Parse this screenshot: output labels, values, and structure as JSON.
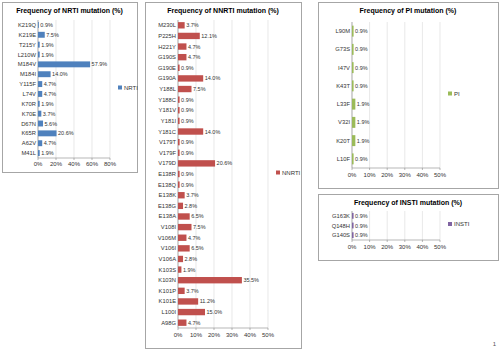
{
  "chart_data": [
    {
      "type": "bar",
      "orientation": "horizontal",
      "title": "Frequency of NRTI mutation (%)",
      "categories": [
        "K219Q",
        "K219E",
        "T215Y",
        "L210W",
        "M184V",
        "M184I",
        "Y115F",
        "L74V",
        "K70R",
        "K70E",
        "D67N",
        "K65R",
        "A62V",
        "M41L"
      ],
      "series": [
        {
          "name": "NRTI",
          "color": "#4f81bd",
          "values": [
            0.9,
            7.5,
            1.9,
            1.9,
            57.9,
            14.0,
            4.7,
            4.7,
            1.9,
            3.7,
            5.6,
            20.6,
            4.7,
            1.9
          ],
          "value_labels": [
            "0.9%",
            "7.5%",
            "1.9%",
            "1.9%",
            "57.9%",
            "14.0%",
            "4.7%",
            "4.7%",
            "1.9%",
            "3.7%",
            "5.6%",
            "20.6%",
            "4.7%",
            "1.9%"
          ]
        }
      ],
      "xlim": [
        0,
        80
      ],
      "xticks": [
        {
          "value": 0,
          "label": "0%"
        },
        {
          "value": 20,
          "label": "20%"
        },
        {
          "value": 40,
          "label": "40%"
        },
        {
          "value": 60,
          "label": "60%"
        },
        {
          "value": 80,
          "label": "80%"
        }
      ],
      "grid": true,
      "legend": "right",
      "data_labels": true
    },
    {
      "type": "bar",
      "orientation": "horizontal",
      "title": "Frequency of NNRTI mutation (%)",
      "categories": [
        "M230L",
        "P225H",
        "H221Y",
        "G190S",
        "G190E",
        "G190A",
        "Y188L",
        "Y188C",
        "Y181V",
        "Y181I",
        "Y181C",
        "V179T",
        "V179F",
        "V179D",
        "E138R",
        "E138Q",
        "E138K",
        "E138G",
        "E138A",
        "V108I",
        "V106M",
        "V106I",
        "V106A",
        "K103S",
        "K103N",
        "K101P",
        "K101E",
        "L100I",
        "A98G"
      ],
      "series": [
        {
          "name": "NNRTI",
          "color": "#c0504d",
          "values": [
            3.7,
            12.1,
            4.7,
            4.7,
            0.9,
            14.0,
            7.5,
            0.9,
            0.9,
            0.9,
            14.0,
            0.9,
            0.9,
            20.6,
            0.9,
            0.9,
            3.7,
            2.8,
            6.5,
            7.5,
            4.7,
            6.5,
            2.8,
            1.9,
            35.5,
            3.7,
            11.2,
            15.0,
            4.7
          ],
          "value_labels": [
            "3.7%",
            "12.1%",
            "4.7%",
            "4.7%",
            "0.9%",
            "14.0%",
            "7.5%",
            "0.9%",
            "0.9%",
            "0.9%",
            "14.0%",
            "0.9%",
            "0.9%",
            "20.6%",
            "0.9%",
            "0.9%",
            "3.7%",
            "2.8%",
            "6.5%",
            "7.5%",
            "4.7%",
            "6.5%",
            "2.8%",
            "1.9%",
            "35.5%",
            "3.7%",
            "11.2%",
            "15.0%",
            "4.7%"
          ]
        }
      ],
      "xlim": [
        0,
        50
      ],
      "xticks": [
        {
          "value": 0,
          "label": "0%"
        },
        {
          "value": 10,
          "label": "10%"
        },
        {
          "value": 20,
          "label": "20%"
        },
        {
          "value": 30,
          "label": "30%"
        },
        {
          "value": 40,
          "label": "40%"
        },
        {
          "value": 50,
          "label": "50%"
        }
      ],
      "grid": true,
      "legend": "right",
      "data_labels": true
    },
    {
      "type": "bar",
      "orientation": "horizontal",
      "title": "Frequency of PI mutation (%)",
      "categories": [
        "L90M",
        "G73S",
        "I47V",
        "K43T",
        "L33F",
        "V32I",
        "K20T",
        "L10F"
      ],
      "series": [
        {
          "name": "PI",
          "color": "#9bbb59",
          "values": [
            0.9,
            0.9,
            0.9,
            0.9,
            1.9,
            1.9,
            1.9,
            0.9
          ],
          "value_labels": [
            "0.9%",
            "0.9%",
            "0.9%",
            "0.9%",
            "1.9%",
            "1.9%",
            "1.9%",
            "0.9%"
          ]
        }
      ],
      "xlim": [
        0,
        50
      ],
      "xticks": [
        {
          "value": 0,
          "label": "0%"
        },
        {
          "value": 10,
          "label": "10%"
        },
        {
          "value": 20,
          "label": "20%"
        },
        {
          "value": 30,
          "label": "30%"
        },
        {
          "value": 40,
          "label": "40%"
        },
        {
          "value": 50,
          "label": "50%"
        }
      ],
      "grid": true,
      "legend": "right",
      "data_labels": true
    },
    {
      "type": "bar",
      "orientation": "horizontal",
      "title": "Frequency of INSTI mutation (%)",
      "categories": [
        "G163K",
        "Q148H",
        "G140S"
      ],
      "series": [
        {
          "name": "INSTI",
          "color": "#8064a2",
          "values": [
            0.9,
            0.9,
            0.9
          ],
          "value_labels": [
            "0.9%",
            "0.9%",
            "0.9%"
          ]
        }
      ],
      "xlim": [
        0,
        50
      ],
      "xticks": [
        {
          "value": 0,
          "label": "0%"
        },
        {
          "value": 10,
          "label": "10%"
        },
        {
          "value": 20,
          "label": "20%"
        },
        {
          "value": 30,
          "label": "30%"
        },
        {
          "value": 40,
          "label": "40%"
        },
        {
          "value": 50,
          "label": "50%"
        }
      ],
      "grid": true,
      "legend": "right",
      "data_labels": true
    }
  ],
  "page_number": "1"
}
